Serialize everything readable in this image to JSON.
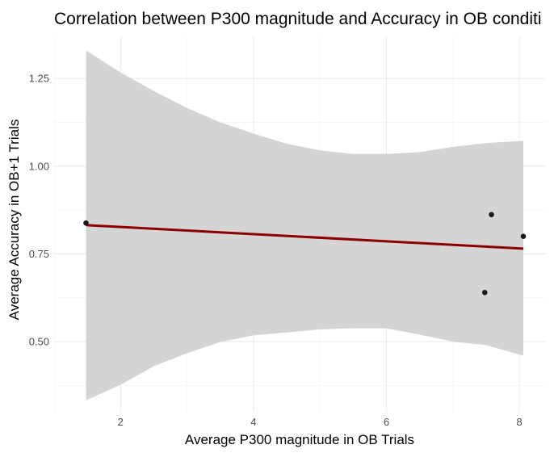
{
  "chart_data": {
    "type": "scatter",
    "title": "Correlation between P300 magnitude and Accuracy in OB conditi",
    "xlabel": "Average P300 magnitude in OB Trials",
    "ylabel": "Average Accuracy in OB+1 Trials",
    "xlim": [
      1.0,
      8.4
    ],
    "ylim": [
      0.3,
      1.37
    ],
    "x_ticks": [
      2,
      4,
      6,
      8
    ],
    "x_tick_labels": [
      "2",
      "4",
      "6",
      "8"
    ],
    "y_ticks": [
      0.5,
      0.75,
      1.0,
      1.25
    ],
    "y_tick_labels": [
      "0.50",
      "0.75",
      "1.00",
      "1.25"
    ],
    "grid": true,
    "points": [
      {
        "x": 1.48,
        "y": 0.838
      },
      {
        "x": 7.58,
        "y": 0.862
      },
      {
        "x": 7.48,
        "y": 0.64
      },
      {
        "x": 8.06,
        "y": 0.8
      }
    ],
    "trend_line": {
      "x": [
        1.48,
        8.06
      ],
      "y": [
        0.832,
        0.765
      ],
      "color": "#8b0000"
    },
    "confidence_band": {
      "color": "#d4d4d4",
      "x": [
        1.48,
        2.0,
        2.5,
        3.0,
        3.5,
        4.0,
        4.5,
        5.0,
        5.5,
        6.0,
        6.5,
        7.0,
        7.5,
        8.06
      ],
      "upper": [
        1.33,
        1.267,
        1.214,
        1.166,
        1.125,
        1.093,
        1.064,
        1.045,
        1.035,
        1.035,
        1.04,
        1.055,
        1.066,
        1.072
      ],
      "lower": [
        0.333,
        0.377,
        0.43,
        0.467,
        0.499,
        0.518,
        0.526,
        0.535,
        0.538,
        0.538,
        0.52,
        0.5,
        0.49,
        0.46
      ]
    }
  }
}
